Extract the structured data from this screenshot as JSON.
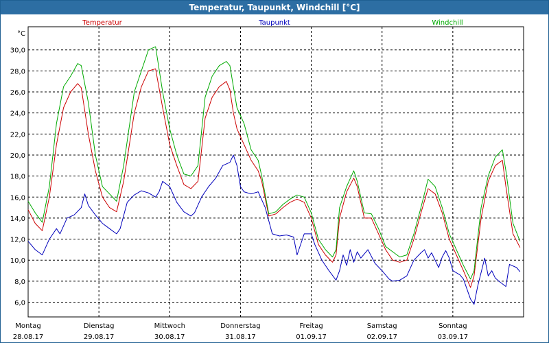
{
  "window": {
    "title": "Temperatur, Taupunkt, Windchill [°C]"
  },
  "chart_data": {
    "type": "line",
    "title": "Temperatur, Taupunkt, Windchill [°C]",
    "ylabel": "°C",
    "xlabel": "",
    "ylim": [
      4.6,
      32.2
    ],
    "xlim": [
      0,
      7
    ],
    "grid": true,
    "yticks": [
      6,
      8,
      10,
      12,
      14,
      16,
      18,
      20,
      22,
      24,
      26,
      28,
      30
    ],
    "ytick_labels": [
      "6,0",
      "8,0",
      "10,0",
      "12,0",
      "14,0",
      "16,0",
      "18,0",
      "20,0",
      "22,0",
      "24,0",
      "26,0",
      "28,0",
      "30,0"
    ],
    "xticks": [
      {
        "day": "Montag",
        "date": "28.08.17"
      },
      {
        "day": "Dienstag",
        "date": "29.08.17"
      },
      {
        "day": "Mittwoch",
        "date": "30.08.17"
      },
      {
        "day": "Donnerstag",
        "date": "31.08.17"
      },
      {
        "day": "Freitag",
        "date": "01.09.17"
      },
      {
        "day": "Samstag",
        "date": "02.09.17"
      },
      {
        "day": "Sonntag",
        "date": "03.09.17"
      }
    ],
    "series": [
      {
        "name": "Temperatur",
        "color": "#cc0000",
        "points": [
          [
            0,
            14.8
          ],
          [
            0.1,
            13.5
          ],
          [
            0.2,
            12.8
          ],
          [
            0.3,
            16
          ],
          [
            0.4,
            21
          ],
          [
            0.5,
            24.5
          ],
          [
            0.6,
            26
          ],
          [
            0.7,
            26.8
          ],
          [
            0.75,
            26.4
          ],
          [
            0.85,
            22
          ],
          [
            0.95,
            18.5
          ],
          [
            1.05,
            16
          ],
          [
            1.15,
            15
          ],
          [
            1.25,
            14.6
          ],
          [
            1.35,
            17.5
          ],
          [
            1.5,
            24
          ],
          [
            1.6,
            26.5
          ],
          [
            1.7,
            28
          ],
          [
            1.8,
            28.2
          ],
          [
            1.9,
            24.5
          ],
          [
            2.0,
            21
          ],
          [
            2.1,
            19
          ],
          [
            2.2,
            17.2
          ],
          [
            2.3,
            16.8
          ],
          [
            2.4,
            17.5
          ],
          [
            2.5,
            23.5
          ],
          [
            2.6,
            25.5
          ],
          [
            2.7,
            26.5
          ],
          [
            2.8,
            27
          ],
          [
            2.85,
            26.2
          ],
          [
            2.9,
            24
          ],
          [
            2.95,
            22.5
          ],
          [
            3.05,
            21
          ],
          [
            3.15,
            19.5
          ],
          [
            3.25,
            18.5
          ],
          [
            3.3,
            17.5
          ],
          [
            3.4,
            14.2
          ],
          [
            3.5,
            14.4
          ],
          [
            3.6,
            15
          ],
          [
            3.7,
            15.5
          ],
          [
            3.8,
            15.8
          ],
          [
            3.9,
            15.5
          ],
          [
            4.0,
            14
          ],
          [
            4.1,
            11.5
          ],
          [
            4.2,
            10.5
          ],
          [
            4.3,
            9.8
          ],
          [
            4.35,
            10.5
          ],
          [
            4.4,
            14
          ],
          [
            4.5,
            16.5
          ],
          [
            4.6,
            17.8
          ],
          [
            4.65,
            17
          ],
          [
            4.75,
            14
          ],
          [
            4.85,
            14
          ],
          [
            4.95,
            12.5
          ],
          [
            5.05,
            11
          ],
          [
            5.15,
            10
          ],
          [
            5.25,
            9.8
          ],
          [
            5.35,
            10
          ],
          [
            5.45,
            12
          ],
          [
            5.55,
            14.5
          ],
          [
            5.65,
            16.8
          ],
          [
            5.75,
            16.3
          ],
          [
            5.85,
            14.5
          ],
          [
            5.95,
            12
          ],
          [
            6.05,
            10.5
          ],
          [
            6.15,
            9
          ],
          [
            6.25,
            7.4
          ],
          [
            6.3,
            8.5
          ],
          [
            6.4,
            14
          ],
          [
            6.5,
            17.5
          ],
          [
            6.6,
            19
          ],
          [
            6.7,
            19.5
          ],
          [
            6.75,
            17
          ],
          [
            6.85,
            12.5
          ],
          [
            6.95,
            11.2
          ]
        ]
      },
      {
        "name": "Taupunkt",
        "color": "#0000bb",
        "points": [
          [
            0,
            11.8
          ],
          [
            0.1,
            11
          ],
          [
            0.2,
            10.5
          ],
          [
            0.3,
            12
          ],
          [
            0.4,
            13
          ],
          [
            0.45,
            12.5
          ],
          [
            0.55,
            14
          ],
          [
            0.65,
            14.3
          ],
          [
            0.75,
            15
          ],
          [
            0.8,
            16.3
          ],
          [
            0.85,
            15.2
          ],
          [
            0.95,
            14.3
          ],
          [
            1.05,
            13.5
          ],
          [
            1.15,
            13
          ],
          [
            1.25,
            12.5
          ],
          [
            1.3,
            13
          ],
          [
            1.4,
            15.5
          ],
          [
            1.5,
            16.2
          ],
          [
            1.6,
            16.6
          ],
          [
            1.7,
            16.4
          ],
          [
            1.8,
            16
          ],
          [
            1.85,
            16.5
          ],
          [
            1.9,
            17.5
          ],
          [
            2.0,
            17
          ],
          [
            2.1,
            15.5
          ],
          [
            2.2,
            14.6
          ],
          [
            2.3,
            14.2
          ],
          [
            2.35,
            14.5
          ],
          [
            2.45,
            16
          ],
          [
            2.55,
            17
          ],
          [
            2.65,
            17.8
          ],
          [
            2.75,
            19
          ],
          [
            2.85,
            19.3
          ],
          [
            2.9,
            20
          ],
          [
            2.95,
            19
          ],
          [
            3.0,
            17
          ],
          [
            3.05,
            16.5
          ],
          [
            3.15,
            16.3
          ],
          [
            3.25,
            16.5
          ],
          [
            3.35,
            15
          ],
          [
            3.45,
            12.5
          ],
          [
            3.55,
            12.3
          ],
          [
            3.65,
            12.4
          ],
          [
            3.75,
            12.2
          ],
          [
            3.8,
            10.5
          ],
          [
            3.9,
            12.5
          ],
          [
            4.0,
            12.5
          ],
          [
            4.05,
            11.5
          ],
          [
            4.15,
            10
          ],
          [
            4.25,
            9
          ],
          [
            4.35,
            8.1
          ],
          [
            4.4,
            9
          ],
          [
            4.45,
            10.5
          ],
          [
            4.5,
            9.5
          ],
          [
            4.55,
            11
          ],
          [
            4.6,
            9.8
          ],
          [
            4.65,
            10.8
          ],
          [
            4.7,
            10.2
          ],
          [
            4.8,
            11
          ],
          [
            4.9,
            9.7
          ],
          [
            5.0,
            9
          ],
          [
            5.1,
            8.2
          ],
          [
            5.15,
            8
          ],
          [
            5.25,
            8.1
          ],
          [
            5.35,
            8.5
          ],
          [
            5.45,
            10
          ],
          [
            5.55,
            10.7
          ],
          [
            5.6,
            11
          ],
          [
            5.65,
            10.2
          ],
          [
            5.7,
            10.7
          ],
          [
            5.8,
            9.3
          ],
          [
            5.85,
            10.3
          ],
          [
            5.9,
            10.9
          ],
          [
            5.95,
            10.2
          ],
          [
            6.0,
            9
          ],
          [
            6.1,
            8.6
          ],
          [
            6.15,
            8.2
          ],
          [
            6.25,
            6.3
          ],
          [
            6.3,
            5.8
          ],
          [
            6.35,
            7.5
          ],
          [
            6.45,
            10.2
          ],
          [
            6.5,
            8.5
          ],
          [
            6.55,
            9
          ],
          [
            6.6,
            8.3
          ],
          [
            6.65,
            8
          ],
          [
            6.75,
            7.5
          ],
          [
            6.8,
            9.6
          ],
          [
            6.9,
            9.3
          ],
          [
            6.95,
            8.9
          ]
        ]
      },
      {
        "name": "Windchill",
        "color": "#00aa00",
        "points": [
          [
            0,
            15.6
          ],
          [
            0.1,
            14.5
          ],
          [
            0.2,
            13.6
          ],
          [
            0.3,
            17
          ],
          [
            0.4,
            23
          ],
          [
            0.5,
            26.5
          ],
          [
            0.6,
            27.5
          ],
          [
            0.7,
            28.7
          ],
          [
            0.75,
            28.5
          ],
          [
            0.85,
            25
          ],
          [
            0.95,
            20
          ],
          [
            1.05,
            17
          ],
          [
            1.15,
            16.3
          ],
          [
            1.25,
            15.6
          ],
          [
            1.35,
            19
          ],
          [
            1.5,
            26
          ],
          [
            1.6,
            28
          ],
          [
            1.7,
            30
          ],
          [
            1.8,
            30.3
          ],
          [
            1.9,
            26
          ],
          [
            2.0,
            22.5
          ],
          [
            2.1,
            20
          ],
          [
            2.2,
            18.2
          ],
          [
            2.3,
            18
          ],
          [
            2.4,
            19
          ],
          [
            2.5,
            25.5
          ],
          [
            2.6,
            27.5
          ],
          [
            2.7,
            28.5
          ],
          [
            2.8,
            28.9
          ],
          [
            2.85,
            28.5
          ],
          [
            2.9,
            26.5
          ],
          [
            2.95,
            24.5
          ],
          [
            3.05,
            23
          ],
          [
            3.15,
            20.5
          ],
          [
            3.25,
            19.5
          ],
          [
            3.3,
            18
          ],
          [
            3.4,
            14.4
          ],
          [
            3.5,
            14.6
          ],
          [
            3.6,
            15.3
          ],
          [
            3.7,
            15.8
          ],
          [
            3.8,
            16.2
          ],
          [
            3.9,
            16
          ],
          [
            4.0,
            14.5
          ],
          [
            4.1,
            12
          ],
          [
            4.2,
            11
          ],
          [
            4.3,
            10.3
          ],
          [
            4.35,
            11
          ],
          [
            4.4,
            15
          ],
          [
            4.5,
            17
          ],
          [
            4.6,
            18.5
          ],
          [
            4.65,
            17.5
          ],
          [
            4.75,
            14.5
          ],
          [
            4.85,
            14.4
          ],
          [
            4.95,
            13
          ],
          [
            5.05,
            11.3
          ],
          [
            5.15,
            10.8
          ],
          [
            5.25,
            10.3
          ],
          [
            5.35,
            10.5
          ],
          [
            5.45,
            12.5
          ],
          [
            5.55,
            15
          ],
          [
            5.65,
            17.7
          ],
          [
            5.75,
            17
          ],
          [
            5.85,
            15
          ],
          [
            5.95,
            12.5
          ],
          [
            6.05,
            11
          ],
          [
            6.15,
            9.5
          ],
          [
            6.25,
            8.2
          ],
          [
            6.3,
            9
          ],
          [
            6.4,
            15
          ],
          [
            6.5,
            18
          ],
          [
            6.6,
            19.8
          ],
          [
            6.7,
            20.5
          ],
          [
            6.75,
            18.5
          ],
          [
            6.85,
            13.5
          ],
          [
            6.95,
            11.8
          ]
        ]
      }
    ]
  }
}
